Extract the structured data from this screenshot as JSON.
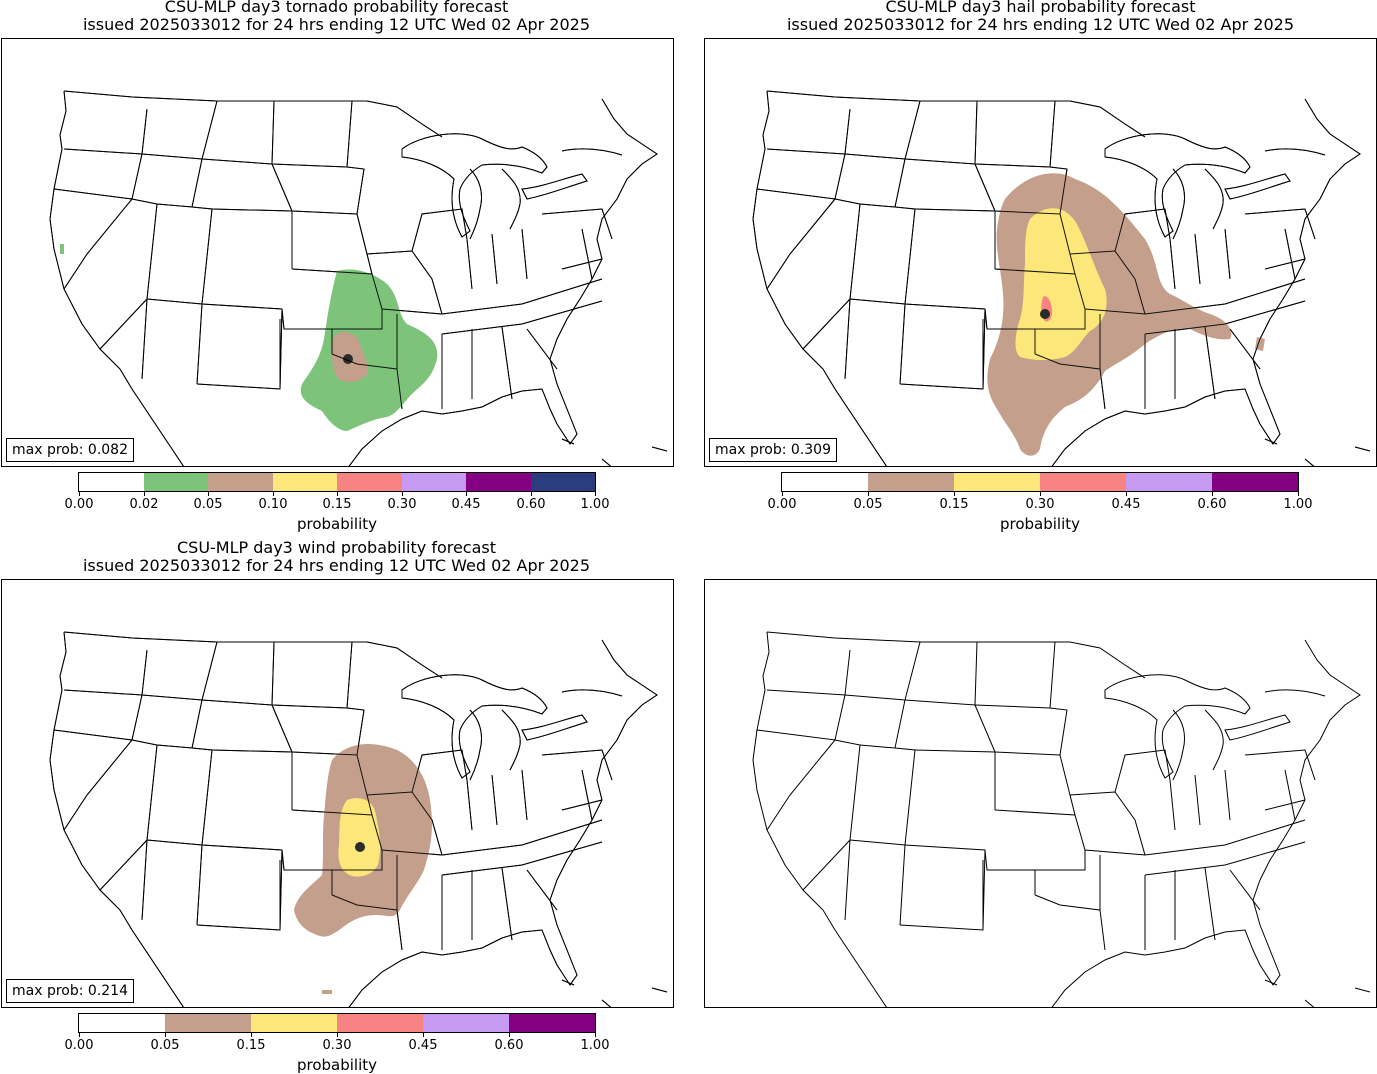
{
  "panels": {
    "tornado": {
      "title_line1": "CSU-MLP day3 tornado probability forecast",
      "title_line2": "issued 2025033012 for 24 hrs ending 12 UTC Wed 02 Apr 2025",
      "max_prob": "max prob: 0.082",
      "colorbar": {
        "label": "probability",
        "ticks": [
          "0.00",
          "0.02",
          "0.05",
          "0.10",
          "0.15",
          "0.30",
          "0.45",
          "0.60",
          "1.00"
        ],
        "colors": [
          "#ffffff",
          "#7dc47a",
          "#c4a08c",
          "#fce77a",
          "#f88383",
          "#c69af0",
          "#830083",
          "#2c3d7e"
        ]
      }
    },
    "hail": {
      "title_line1": "CSU-MLP day3 hail probability forecast",
      "title_line2": "issued 2025033012 for 24 hrs ending 12 UTC Wed 02 Apr 2025",
      "max_prob": "max prob: 0.309",
      "colorbar": {
        "label": "probability",
        "ticks": [
          "0.00",
          "0.05",
          "0.15",
          "0.30",
          "0.45",
          "0.60",
          "1.00"
        ],
        "colors": [
          "#ffffff",
          "#c4a08c",
          "#fce77a",
          "#f88383",
          "#c69af0",
          "#830083"
        ]
      }
    },
    "wind": {
      "title_line1": "CSU-MLP day3 wind probability forecast",
      "title_line2": "issued 2025033012 for 24 hrs ending 12 UTC Wed 02 Apr 2025",
      "max_prob": "max prob: 0.214",
      "colorbar": {
        "label": "probability",
        "ticks": [
          "0.00",
          "0.05",
          "0.15",
          "0.30",
          "0.45",
          "0.60",
          "1.00"
        ],
        "colors": [
          "#ffffff",
          "#c4a08c",
          "#fce77a",
          "#f88383",
          "#c69af0",
          "#830083"
        ]
      }
    },
    "empty": {}
  },
  "colors": {
    "green": "#7dc47a",
    "brown": "#c4a08c",
    "yellow": "#fce77a",
    "red": "#f88383",
    "dot": "#2b2b2b"
  }
}
